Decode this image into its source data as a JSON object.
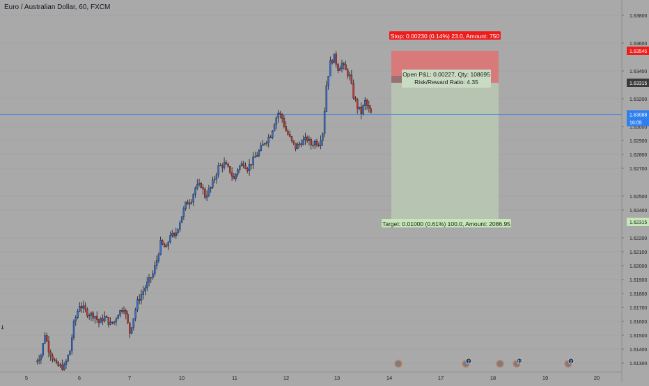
{
  "header": {
    "title": "Euro / Australian Dollar, 60, FXCM"
  },
  "colors": {
    "background": "#a9a9a9",
    "candle_up": "#2f6fdb",
    "candle_down": "#d32f2f",
    "wick": "#1a1a1a",
    "stop_zone": "#d97a7a",
    "target_zone": "#b8c6b2",
    "current_price": "#2f80ed",
    "stop_label": "#ef1c1c",
    "target_label": "#c5e6b8",
    "entry_label": "#3a3a3a"
  },
  "chart_data": {
    "type": "candlestick",
    "title": "Euro / Australian Dollar, 60, FXCM",
    "symbol": "EURAUD",
    "timeframe": "60",
    "source": "FXCM",
    "ylim": [
      1.6126,
      1.6391
    ],
    "y_ticks": [
      "1.63800",
      "1.63600",
      "1.63400",
      "1.63200",
      "1.63000",
      "1.62900",
      "1.62800",
      "1.62700",
      "1.62500",
      "1.62400",
      "1.62200",
      "1.62100",
      "1.62000",
      "1.61900",
      "1.61800",
      "1.61700",
      "1.61600",
      "1.61500",
      "1.61400",
      "1.61300"
    ],
    "x_ticks": [
      "5",
      "6",
      "7",
      "10",
      "11",
      "12",
      "13",
      "14",
      "17",
      "18",
      "19",
      "20"
    ],
    "price_labels": {
      "stop": "1.63545",
      "entry": "1.63315",
      "current": "1.63088",
      "countdown": "16:09",
      "target": "1.62315"
    },
    "position": {
      "type": "long",
      "entry": 1.63315,
      "stop": 1.63545,
      "target": 1.62315,
      "stop_text": "Stop: 0.00230 (0.14%) 23.0, Amount: 750",
      "pnl_text": "Open P&L: 0.00227, Qty: 108695",
      "rr_text": "Risk/Reward Ratio: 4.35",
      "target_text": "Target: 0.01000 (0.61%) 100.0, Amount: 2086.95"
    },
    "current_price": 1.63088,
    "events": [
      {
        "x": "14"
      },
      {
        "x": "17",
        "count": "2"
      },
      {
        "x": "18"
      },
      {
        "x": "18",
        "count": "12"
      },
      {
        "x": "19",
        "count": "2"
      }
    ],
    "price_path": [
      [
        0,
        1.6155
      ],
      [
        5,
        1.6128
      ],
      [
        14,
        1.6126
      ],
      [
        20,
        1.6136
      ],
      [
        22,
        1.6151
      ],
      [
        24,
        1.614
      ],
      [
        26,
        1.6134
      ],
      [
        28,
        1.6128
      ],
      [
        32,
        1.6127
      ],
      [
        35,
        1.6139
      ],
      [
        37,
        1.6158
      ],
      [
        40,
        1.6172
      ],
      [
        44,
        1.6166
      ],
      [
        48,
        1.6164
      ],
      [
        50,
        1.6159
      ],
      [
        53,
        1.6163
      ],
      [
        56,
        1.6158
      ],
      [
        58,
        1.616
      ],
      [
        60,
        1.6166
      ],
      [
        63,
        1.617
      ],
      [
        66,
        1.6152
      ],
      [
        70,
        1.6174
      ],
      [
        75,
        1.6187
      ],
      [
        78,
        1.6194
      ],
      [
        80,
        1.6204
      ],
      [
        82,
        1.6216
      ],
      [
        85,
        1.6212
      ],
      [
        87,
        1.6223
      ],
      [
        89,
        1.622
      ],
      [
        92,
        1.6232
      ],
      [
        95,
        1.6244
      ],
      [
        98,
        1.6248
      ],
      [
        100,
        1.6256
      ],
      [
        103,
        1.6258
      ],
      [
        105,
        1.625
      ],
      [
        108,
        1.6256
      ],
      [
        110,
        1.6263
      ],
      [
        112,
        1.6271
      ],
      [
        115,
        1.6273
      ],
      [
        118,
        1.6268
      ],
      [
        120,
        1.6262
      ],
      [
        122,
        1.627
      ],
      [
        125,
        1.6274
      ],
      [
        127,
        1.627
      ],
      [
        130,
        1.6276
      ],
      [
        133,
        1.6282
      ],
      [
        136,
        1.6289
      ],
      [
        139,
        1.6294
      ],
      [
        141,
        1.6303
      ],
      [
        143,
        1.631
      ],
      [
        145,
        1.6306
      ],
      [
        147,
        1.6297
      ],
      [
        150,
        1.6289
      ],
      [
        152,
        1.6285
      ],
      [
        155,
        1.6289
      ],
      [
        158,
        1.6291
      ],
      [
        160,
        1.6287
      ],
      [
        162,
        1.6289
      ],
      [
        164,
        1.6288
      ],
      [
        166,
        1.6296
      ],
      [
        167,
        1.6312
      ],
      [
        168,
        1.633
      ],
      [
        170,
        1.6346
      ],
      [
        172,
        1.635
      ],
      [
        174,
        1.6342
      ],
      [
        176,
        1.6345
      ],
      [
        178,
        1.634
      ],
      [
        180,
        1.6336
      ],
      [
        182,
        1.6322
      ],
      [
        184,
        1.6314
      ],
      [
        186,
        1.631
      ],
      [
        188,
        1.6318
      ],
      [
        190,
        1.6312
      ],
      [
        191,
        1.6309
      ]
    ]
  }
}
